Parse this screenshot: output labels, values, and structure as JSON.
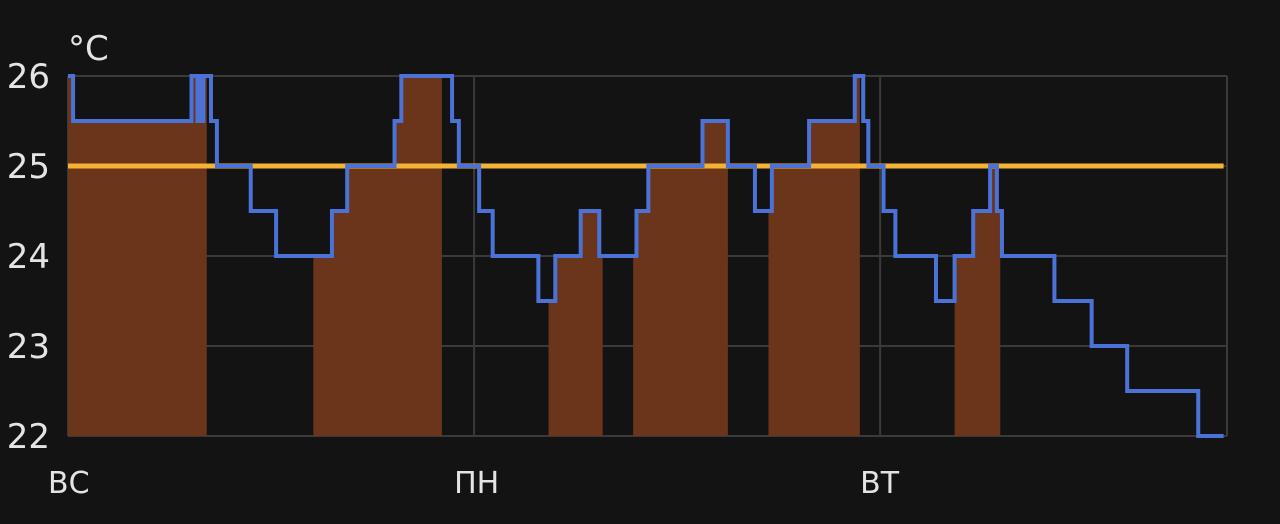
{
  "chart_data": {
    "type": "line",
    "unit": "°C",
    "ylim": [
      22,
      26
    ],
    "yticks": [
      "26",
      "25",
      "24",
      "23",
      "22"
    ],
    "xlim": [
      0,
      68.5
    ],
    "day_labels": [
      {
        "label": "ВС",
        "x": 0
      },
      {
        "label": "ПН",
        "x": 24
      },
      {
        "label": "ВТ",
        "x": 48
      }
    ],
    "grid": true,
    "colors": {
      "background": "#131313",
      "grid": "#3a3a3a",
      "current_temperature": "#4b72d6",
      "target_temperature": "#f5b335",
      "heating": "#6b351b"
    },
    "series": [
      {
        "key": "current_temperature",
        "step": true,
        "points": [
          [
            0,
            26
          ],
          [
            0.3,
            25.5
          ],
          [
            7.2,
            25.5
          ],
          [
            7.3,
            26
          ],
          [
            7.6,
            26
          ],
          [
            7.65,
            25.5
          ],
          [
            7.75,
            26
          ],
          [
            7.85,
            25.5
          ],
          [
            8.0,
            26
          ],
          [
            8.4,
            26
          ],
          [
            8.45,
            25.5
          ],
          [
            8.8,
            25
          ],
          [
            10.8,
            24.5
          ],
          [
            12.3,
            24
          ],
          [
            15.5,
            24
          ],
          [
            15.6,
            24.5
          ],
          [
            16.5,
            25
          ],
          [
            19.3,
            25.5
          ],
          [
            19.7,
            26
          ],
          [
            22.5,
            26
          ],
          [
            22.7,
            25.5
          ],
          [
            23.1,
            25
          ],
          [
            24.3,
            24.5
          ],
          [
            25.1,
            24
          ],
          [
            27.6,
            24
          ],
          [
            27.8,
            23.5
          ],
          [
            28.8,
            24
          ],
          [
            30.3,
            24.5
          ],
          [
            31.4,
            24
          ],
          [
            33.2,
            24
          ],
          [
            33.6,
            24.5
          ],
          [
            34.3,
            25
          ],
          [
            37.5,
            25.5
          ],
          [
            39.0,
            25
          ],
          [
            40.6,
            24.5
          ],
          [
            41.6,
            25
          ],
          [
            43.8,
            25.5
          ],
          [
            46.5,
            26
          ],
          [
            47.0,
            25.5
          ],
          [
            47.3,
            25
          ],
          [
            48.2,
            24.5
          ],
          [
            48.9,
            24
          ],
          [
            51.2,
            24
          ],
          [
            51.3,
            23.5
          ],
          [
            52.4,
            24
          ],
          [
            53.0,
            24
          ],
          [
            53.5,
            24.5
          ],
          [
            54.5,
            25
          ],
          [
            54.9,
            24.5
          ],
          [
            55.2,
            24
          ],
          [
            58.2,
            24
          ],
          [
            58.3,
            23.5
          ],
          [
            60.3,
            23.5
          ],
          [
            60.5,
            23
          ],
          [
            62.4,
            23
          ],
          [
            62.6,
            22.5
          ],
          [
            66.5,
            22.5
          ],
          [
            66.8,
            22
          ],
          [
            68.3,
            22
          ]
        ]
      },
      {
        "key": "target_temperature",
        "step": true,
        "points": [
          [
            0,
            25
          ],
          [
            68.3,
            25
          ]
        ]
      },
      {
        "key": "heating",
        "type": "area",
        "intervals": [
          [
            0,
            8.2
          ],
          [
            14.5,
            22.1
          ],
          [
            28.4,
            31.6
          ],
          [
            33.4,
            39.0
          ],
          [
            41.4,
            46.8
          ],
          [
            52.4,
            55.1
          ]
        ]
      }
    ]
  }
}
